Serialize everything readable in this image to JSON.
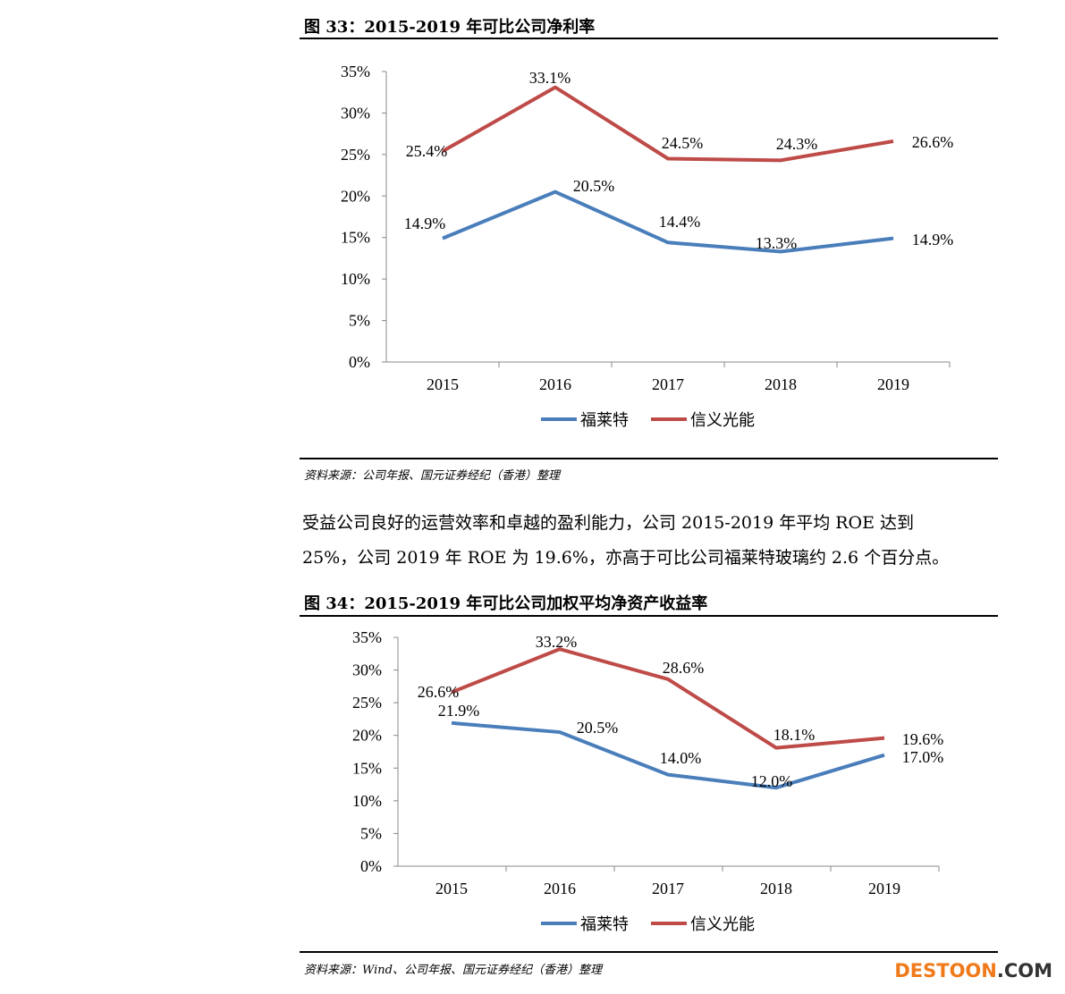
{
  "figure33": {
    "title": "图 33：2015-2019 年可比公司净利率",
    "source": "资料来源：公司年报、国元证券经纪（香港）整理"
  },
  "paragraph": {
    "line1": "受益公司良好的运营效率和卓越的盈利能力，公司 2015-2019 年平均 ROE 达到",
    "line2": "25%，公司 2019 年 ROE 为 19.6%，亦高于可比公司福莱特玻璃约 2.6 个百分点。"
  },
  "figure34": {
    "title": "图 34：2015-2019 年可比公司加权平均净资产收益率",
    "source": "资料来源：Wind、公司年报、国元证券经纪（香港）整理"
  },
  "watermark": {
    "part1": "DESTOON",
    "part2": ".COM"
  },
  "chart_data": [
    {
      "type": "line",
      "title": "2015-2019 年可比公司净利率",
      "categories": [
        "2015",
        "2016",
        "2017",
        "2018",
        "2019"
      ],
      "ylim": [
        0,
        35
      ],
      "yticks": [
        "0%",
        "5%",
        "10%",
        "15%",
        "20%",
        "25%",
        "30%",
        "35%"
      ],
      "legend_position": "bottom",
      "series": [
        {
          "name": "福莱特",
          "color": "#4a7ebb",
          "values": [
            14.9,
            20.5,
            14.4,
            13.3,
            14.9
          ],
          "labels": [
            "14.9%",
            "20.5%",
            "14.4%",
            "13.3%",
            "14.9%"
          ]
        },
        {
          "name": "信义光能",
          "color": "#be4b48",
          "values": [
            25.4,
            33.1,
            24.5,
            24.3,
            26.6
          ],
          "labels": [
            "25.4%",
            "33.1%",
            "24.5%",
            "24.3%",
            "26.6%"
          ]
        }
      ]
    },
    {
      "type": "line",
      "title": "2015-2019 年可比公司加权平均净资产收益率",
      "categories": [
        "2015",
        "2016",
        "2017",
        "2018",
        "2019"
      ],
      "ylim": [
        0,
        35
      ],
      "yticks": [
        "0%",
        "5%",
        "10%",
        "15%",
        "20%",
        "25%",
        "30%",
        "35%"
      ],
      "legend_position": "bottom",
      "series": [
        {
          "name": "福莱特",
          "color": "#4a7ebb",
          "values": [
            21.9,
            20.5,
            14.0,
            12.0,
            17.0
          ],
          "labels": [
            "21.9%",
            "20.5%",
            "14.0%",
            "12.0%",
            "17.0%"
          ]
        },
        {
          "name": "信义光能",
          "color": "#be4b48",
          "values": [
            26.6,
            33.2,
            28.6,
            18.1,
            19.6
          ],
          "labels": [
            "26.6%",
            "33.2%",
            "28.6%",
            "18.1%",
            "19.6%"
          ]
        }
      ]
    }
  ]
}
